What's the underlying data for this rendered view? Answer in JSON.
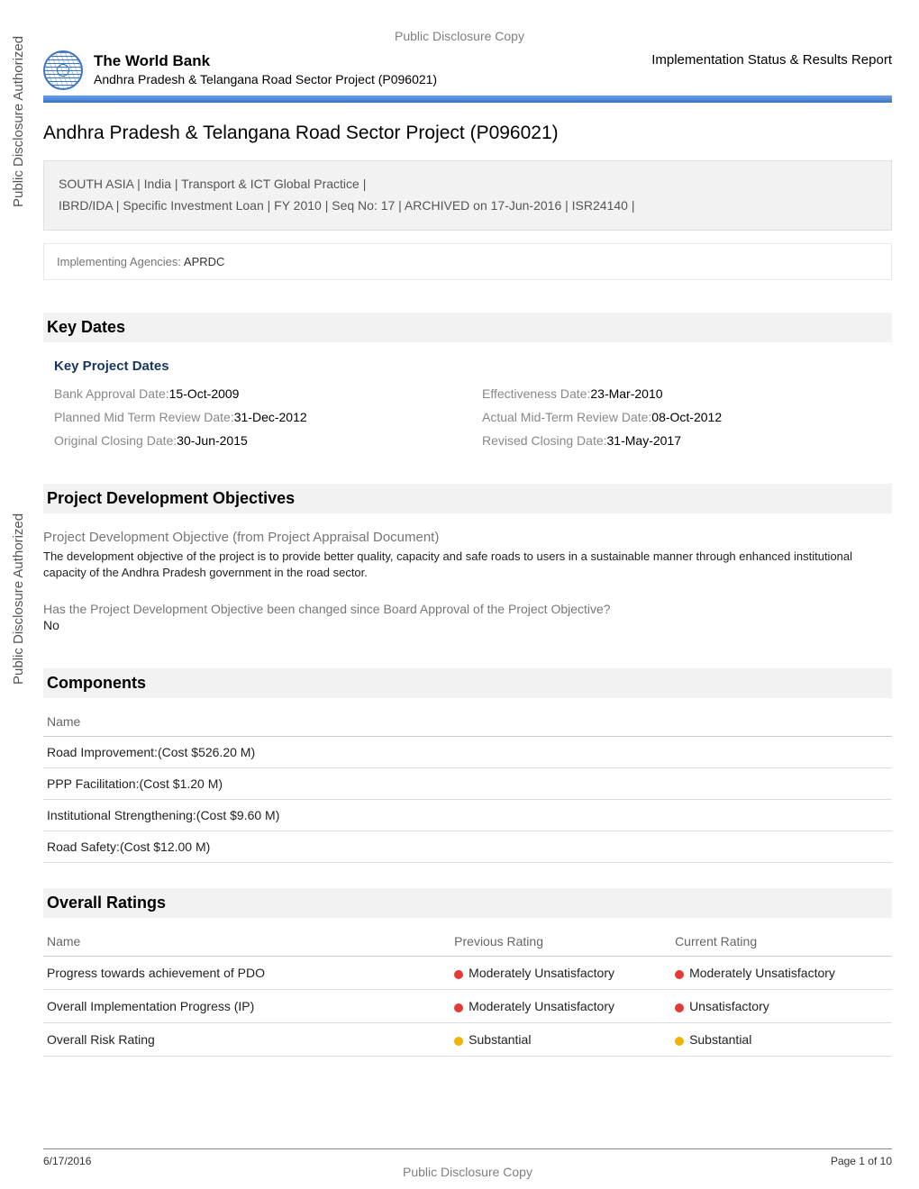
{
  "disclosure_label": "Public Disclosure Copy",
  "vertical_label": "Public Disclosure Authorized",
  "header": {
    "org_name": "The World Bank",
    "project_subtitle": "Andhra Pradesh & Telangana Road Sector Project (P096021)",
    "report_type": "Implementation Status & Results Report"
  },
  "project_title": "Andhra Pradesh & Telangana Road Sector Project (P096021)",
  "meta_line1": "SOUTH ASIA | India | Transport & ICT Global Practice  |",
  "meta_line2": "IBRD/IDA | Specific Investment Loan | FY 2010 | Seq No: 17 | ARCHIVED on 17-Jun-2016 | ISR24140 |",
  "agencies_label": "Implementing Agencies: ",
  "agencies_value": "APRDC",
  "sections": {
    "key_dates": "Key Dates",
    "pdo": "Project Development Objectives",
    "components": "Components",
    "ratings": "Overall Ratings"
  },
  "key_dates_sub": "Key Project Dates",
  "dates": [
    {
      "label": "Bank Approval Date:",
      "value": "15-Oct-2009"
    },
    {
      "label": "Effectiveness Date:",
      "value": "23-Mar-2010"
    },
    {
      "label": "Planned Mid Term Review Date:",
      "value": "31-Dec-2012"
    },
    {
      "label": "Actual Mid-Term Review Date:",
      "value": "08-Oct-2012"
    },
    {
      "label": "Original Closing Date:",
      "value": "30-Jun-2015"
    },
    {
      "label": "Revised Closing Date:",
      "value": "31-May-2017"
    }
  ],
  "pdo_sub": "Project Development Objective (from Project Appraisal Document)",
  "pdo_text": "The development objective of the project is to provide better quality, capacity and safe roads to users in a sustainable manner through enhanced institutional capacity of the Andhra Pradesh government in the road sector.",
  "pdo_question": "Has the Project Development Objective been changed since Board Approval of the Project Objective?",
  "pdo_answer": "No",
  "components_header": "Name",
  "components": [
    "Road Improvement:(Cost $526.20 M)",
    "PPP Facilitation:(Cost $1.20 M)",
    "Institutional Strengthening:(Cost $9.60 M)",
    "Road Safety:(Cost $12.00 M)"
  ],
  "ratings_headers": [
    "Name",
    "Previous Rating",
    "Current Rating"
  ],
  "ratings": [
    {
      "name": "Progress towards achievement of PDO",
      "prev": "Moderately Unsatisfactory",
      "prev_color": "#e53935",
      "curr": "Moderately Unsatisfactory",
      "curr_color": "#e53935"
    },
    {
      "name": "Overall Implementation Progress (IP)",
      "prev": "Moderately Unsatisfactory",
      "prev_color": "#e53935",
      "curr": "Unsatisfactory",
      "curr_color": "#e53935"
    },
    {
      "name": "Overall Risk Rating",
      "prev": "Substantial",
      "prev_color": "#f2b200",
      "curr": "Substantial",
      "curr_color": "#f2b200"
    }
  ],
  "footer": {
    "date": "6/17/2016",
    "page": "Page 1 of 10"
  },
  "colors": {
    "blue_bar": "#3a75c4",
    "meta_bg": "#f2f2f2",
    "heading_bg": "#f2f2f2",
    "sub_heading": "#17365d",
    "muted": "#808080"
  }
}
